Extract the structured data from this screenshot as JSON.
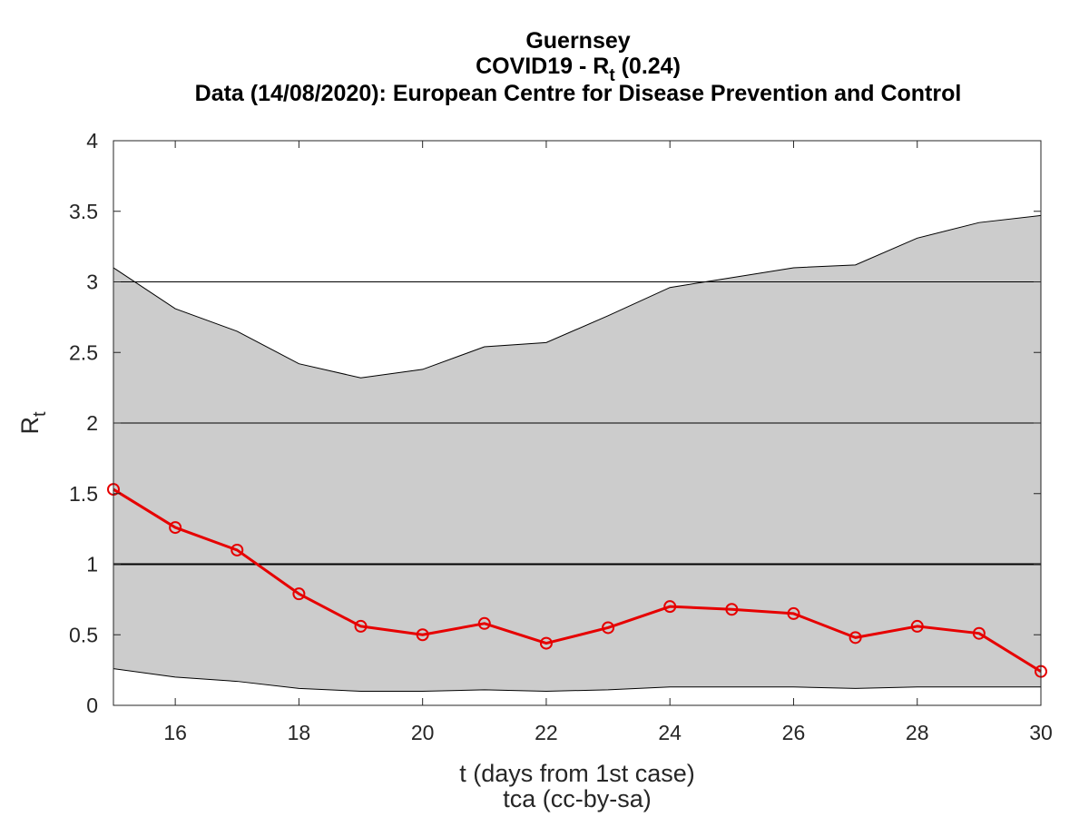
{
  "chart_data": {
    "type": "line",
    "title": {
      "line1": "Guernsey",
      "line2_prefix": "COVID19 - R",
      "line2_sub": "t",
      "line2_suffix": " (0.24)",
      "line3": "Data (14/08/2020): European Centre for Disease Prevention and Control"
    },
    "xlabel": "t (days from 1st case)",
    "ylabel_main": "R",
    "ylabel_sub": "t",
    "credit": "tca (cc-by-sa)",
    "xlim": [
      15,
      30
    ],
    "ylim": [
      0,
      4
    ],
    "xticks": [
      "16",
      "18",
      "20",
      "22",
      "24",
      "26",
      "28",
      "30"
    ],
    "yticks": [
      "0",
      "0.5",
      "1",
      "1.5",
      "2",
      "2.5",
      "3",
      "3.5",
      "4"
    ],
    "ygrid": [
      2,
      3
    ],
    "reference_line": 1,
    "x": [
      15,
      16,
      17,
      18,
      19,
      20,
      21,
      22,
      23,
      24,
      25,
      26,
      27,
      28,
      29,
      30
    ],
    "series": [
      {
        "values": [
          1.53,
          1.26,
          1.1,
          0.79,
          0.56,
          0.5,
          0.58,
          0.44,
          0.55,
          0.7,
          0.68,
          0.65,
          0.48,
          0.56,
          0.51,
          0.24
        ],
        "color": "#e60000"
      }
    ],
    "band": {
      "upper": [
        3.1,
        2.81,
        2.65,
        2.42,
        2.32,
        2.38,
        2.54,
        2.57,
        2.76,
        2.96,
        3.03,
        3.1,
        3.12,
        3.31,
        3.42,
        3.47
      ],
      "lower": [
        0.26,
        0.2,
        0.17,
        0.12,
        0.1,
        0.1,
        0.11,
        0.1,
        0.11,
        0.13,
        0.13,
        0.13,
        0.12,
        0.13,
        0.13,
        0.13
      ],
      "color": "#cccccc"
    }
  }
}
